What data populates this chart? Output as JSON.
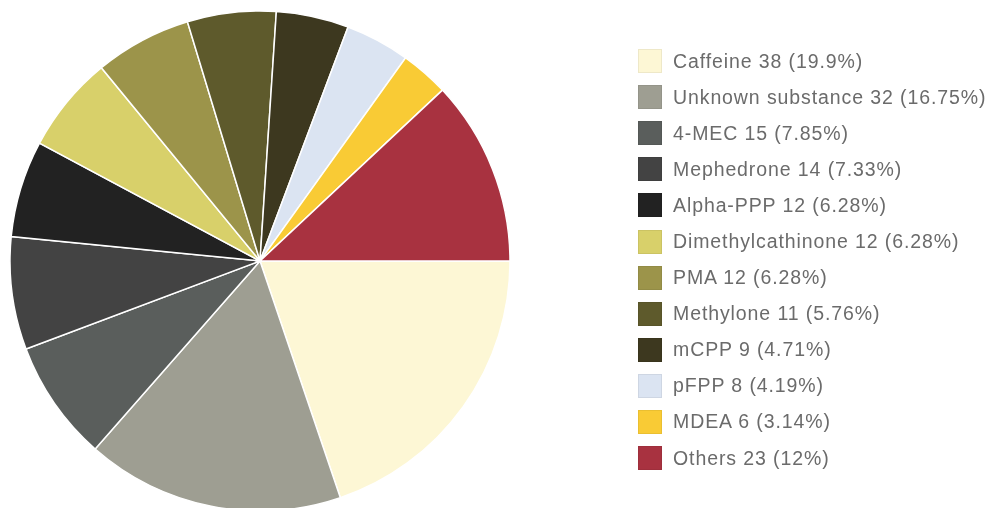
{
  "chart_data": {
    "type": "pie",
    "categories": [
      "Caffeine",
      "Unknown substance",
      "4-MEC",
      "Mephedrone",
      "Alpha-PPP",
      "Dimethylcathinone",
      "PMA",
      "Methylone",
      "mCPP",
      "pFPP",
      "MDEA",
      "Others"
    ],
    "values": [
      38,
      32,
      15,
      14,
      12,
      12,
      12,
      11,
      9,
      8,
      6,
      23
    ],
    "value_labels": [
      "38 (19.9%)",
      "32 (16.75%)",
      "15 (7.85%)",
      "14 (7.33%)",
      "12 (6.28%)",
      "12 (6.28%)",
      "12 (6.28%)",
      "11 (5.76%)",
      "9 (4.71%)",
      "8 (4.19%)",
      "6 (3.14%)",
      "23 (12%)"
    ],
    "colors": [
      "#fdf7d5",
      "#9e9e92",
      "#5a5e5c",
      "#434343",
      "#222222",
      "#d8d06a",
      "#9c944a",
      "#5e5a2c",
      "#3d381f",
      "#dbe4f2",
      "#f9cb35",
      "#a83240"
    ],
    "legend": "right"
  }
}
